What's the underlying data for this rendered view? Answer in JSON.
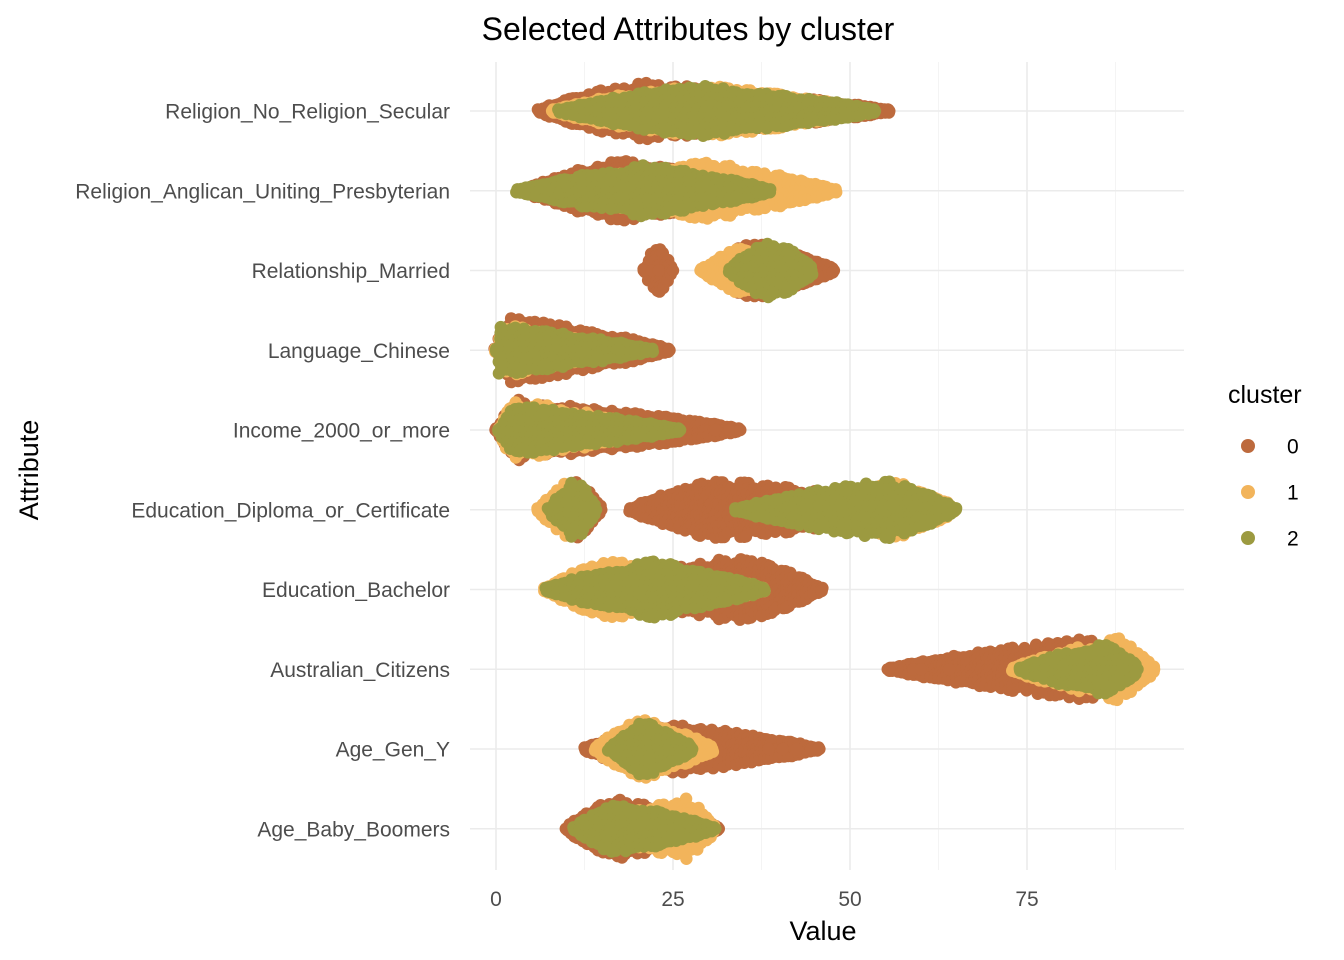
{
  "chart_data": {
    "type": "scatter",
    "subtype": "beeswarm",
    "title": "Selected Attributes by cluster",
    "xlabel": "Value",
    "ylabel": "Attribute",
    "xlim": [
      -1,
      97
    ],
    "x_ticks": [
      "0",
      "25",
      "50",
      "75"
    ],
    "x_tick_values": [
      0,
      25,
      50,
      75
    ],
    "grid": true,
    "legend": {
      "title": "cluster",
      "placement": "right",
      "entries": [
        {
          "label": "0",
          "color": "#bd6a3d"
        },
        {
          "label": "1",
          "color": "#f2b45b"
        },
        {
          "label": "2",
          "color": "#9c9a40"
        }
      ]
    },
    "categories": [
      "Religion_No_Religion_Secular",
      "Religion_Anglican_Uniting_Presbyterian",
      "Relationship_Married",
      "Language_Chinese",
      "Income_2000_or_more",
      "Education_Diploma_or_Certificate",
      "Education_Bachelor",
      "Australian_Citizens",
      "Age_Gen_Y",
      "Age_Baby_Boomers"
    ],
    "series": [
      {
        "name": "0",
        "color": "#bd6a3d",
        "distributions": [
          {
            "category": "Religion_No_Religion_Secular",
            "min": 6,
            "max": 55.5,
            "peak": 20,
            "height": 0.42
          },
          {
            "category": "Religion_Anglican_Uniting_Presbyterian",
            "min": 4,
            "max": 38,
            "peak": 17,
            "height": 0.46
          },
          {
            "category": "Relationship_Married",
            "clusters": [
              [
                21,
                25
              ],
              [
                30,
                48
              ]
            ],
            "peak": 36,
            "height": 0.42,
            "outliers": [
              21,
              22,
              23,
              25
            ]
          },
          {
            "category": "Language_Chinese",
            "min": 0,
            "max": 24.5,
            "peak": 2,
            "height": 0.48,
            "outliers": [
              20.5,
              22,
              24.5
            ]
          },
          {
            "category": "Income_2000_or_more",
            "min": 0,
            "max": 34.5,
            "peak": 3,
            "height": 0.44,
            "outliers": [
              31,
              33,
              34.5
            ]
          },
          {
            "category": "Education_Diploma_or_Certificate",
            "clusters": [
              [
                7,
                15
              ],
              [
                19,
                62
              ]
            ],
            "peak": 31,
            "height": 0.44
          },
          {
            "category": "Education_Bachelor",
            "min": 8,
            "max": 46,
            "peak": 35,
            "height": 0.48
          },
          {
            "category": "Australian_Citizens",
            "min": 55.5,
            "max": 92,
            "peak": 84,
            "height": 0.45,
            "outliers": [
              55.5,
              59,
              60,
              64
            ]
          },
          {
            "category": "Age_Gen_Y",
            "min": 12.5,
            "max": 45.5,
            "peak": 24,
            "height": 0.38,
            "outliers": [
              38.5,
              40.5,
              42.5,
              44.5,
              45.5
            ]
          },
          {
            "category": "Age_Baby_Boomers",
            "min": 10,
            "max": 31.5,
            "peak": 17,
            "height": 0.46
          }
        ]
      },
      {
        "name": "1",
        "color": "#f2b45b",
        "distributions": [
          {
            "category": "Religion_No_Religion_Secular",
            "min": 8,
            "max": 53,
            "peak": 28,
            "height": 0.4
          },
          {
            "category": "Religion_Anglican_Uniting_Presbyterian",
            "min": 5,
            "max": 48,
            "peak": 30,
            "height": 0.42
          },
          {
            "category": "Relationship_Married",
            "min": 29,
            "max": 44,
            "peak": 34,
            "height": 0.34
          },
          {
            "category": "Language_Chinese",
            "min": 0,
            "max": 16,
            "peak": 1.5,
            "height": 0.38
          },
          {
            "category": "Income_2000_or_more",
            "min": 0.5,
            "max": 22,
            "peak": 2.5,
            "height": 0.44
          },
          {
            "category": "Education_Diploma_or_Certificate",
            "clusters": [
              [
                6,
                14
              ],
              [
                40,
                65
              ]
            ],
            "peak": 57,
            "height": 0.4
          },
          {
            "category": "Education_Bachelor",
            "min": 7,
            "max": 38,
            "peak": 16,
            "height": 0.44
          },
          {
            "category": "Australian_Citizens",
            "min": 73,
            "max": 93,
            "peak": 88,
            "height": 0.46
          },
          {
            "category": "Age_Gen_Y",
            "min": 14,
            "max": 31,
            "peak": 20,
            "height": 0.46
          },
          {
            "category": "Age_Baby_Boomers",
            "min": 12,
            "max": 31,
            "peak": 27,
            "height": 0.44
          }
        ]
      },
      {
        "name": "2",
        "color": "#9c9a40",
        "distributions": [
          {
            "category": "Religion_No_Religion_Secular",
            "min": 9,
            "max": 54,
            "peak": 28,
            "height": 0.38
          },
          {
            "category": "Religion_Anglican_Uniting_Presbyterian",
            "min": 3,
            "max": 39,
            "peak": 21,
            "height": 0.38
          },
          {
            "category": "Relationship_Married",
            "min": 33,
            "max": 45,
            "peak": 39,
            "height": 0.46
          },
          {
            "category": "Language_Chinese",
            "min": 0,
            "max": 22,
            "peak": 0.5,
            "height": 0.36,
            "outliers": [
              17.5,
              19.5
            ]
          },
          {
            "category": "Income_2000_or_more",
            "min": 0.5,
            "max": 26,
            "peak": 2.5,
            "height": 0.36,
            "outliers": [
              26
            ]
          },
          {
            "category": "Education_Diploma_or_Certificate",
            "clusters": [
              [
                7.5,
                14.5
              ],
              [
                34,
                65
              ]
            ],
            "peak": 55,
            "height": 0.44
          },
          {
            "category": "Education_Bachelor",
            "min": 7,
            "max": 38,
            "peak": 22,
            "height": 0.42
          },
          {
            "category": "Australian_Citizens",
            "min": 74,
            "max": 91,
            "peak": 86,
            "height": 0.38
          },
          {
            "category": "Age_Gen_Y",
            "min": 16,
            "max": 28,
            "peak": 21,
            "height": 0.4
          },
          {
            "category": "Age_Baby_Boomers",
            "min": 11,
            "max": 31,
            "peak": 17,
            "height": 0.38
          }
        ]
      }
    ]
  }
}
